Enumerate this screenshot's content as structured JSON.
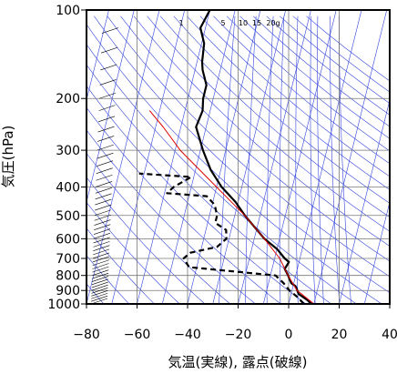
{
  "chart_data": {
    "type": "line",
    "subtype": "skew-t log-p sounding",
    "xlabel": "気温(実線), 露点(破線)",
    "ylabel": "気圧(hPa)",
    "xlim": [
      -80,
      40
    ],
    "ylim": [
      1000,
      100
    ],
    "y_scale": "log",
    "x_ticks": [
      "−80",
      "−60",
      "−40",
      "−20",
      "0",
      "20",
      "40"
    ],
    "x_tick_values": [
      -80,
      -60,
      -40,
      -20,
      0,
      20,
      40
    ],
    "y_ticks": [
      "100",
      "200",
      "300",
      "400",
      "500",
      "600",
      "700",
      "800",
      "900",
      "1000"
    ],
    "y_tick_values": [
      100,
      200,
      300,
      400,
      500,
      600,
      700,
      800,
      900,
      1000
    ],
    "mixing_ratio_labels": [
      "1",
      "5",
      "10",
      "15",
      "20g"
    ],
    "grid": true,
    "series": [
      {
        "style": "solid",
        "color": "#000000",
        "points": [
          {
            "p": 1000,
            "t": 9
          },
          {
            "p": 970,
            "t": 7
          },
          {
            "p": 925,
            "t": 3
          },
          {
            "p": 870,
            "t": 1
          },
          {
            "p": 850,
            "t": -1
          },
          {
            "p": 800,
            "t": -3
          },
          {
            "p": 760,
            "t": -5
          },
          {
            "p": 720,
            "t": -4
          },
          {
            "p": 700,
            "t": -6
          },
          {
            "p": 650,
            "t": -10
          },
          {
            "p": 600,
            "t": -16
          },
          {
            "p": 500,
            "t": -26
          },
          {
            "p": 450,
            "t": -31
          },
          {
            "p": 400,
            "t": -38
          },
          {
            "p": 350,
            "t": -44
          },
          {
            "p": 300,
            "t": -49
          },
          {
            "p": 250,
            "t": -54
          },
          {
            "p": 220,
            "t": -53
          },
          {
            "p": 200,
            "t": -54
          },
          {
            "p": 180,
            "t": -54
          },
          {
            "p": 160,
            "t": -57
          },
          {
            "p": 150,
            "t": -58
          },
          {
            "p": 130,
            "t": -59
          },
          {
            "p": 115,
            "t": -62
          },
          {
            "p": 100,
            "t": -60
          }
        ]
      },
      {
        "style": "dashed",
        "color": "#000000",
        "points": [
          {
            "p": 1000,
            "t": 6
          },
          {
            "p": 950,
            "t": 3
          },
          {
            "p": 900,
            "t": -1
          },
          {
            "p": 850,
            "t": -4
          },
          {
            "p": 800,
            "t": -8
          },
          {
            "p": 750,
            "t": -43
          },
          {
            "p": 700,
            "t": -46
          },
          {
            "p": 670,
            "t": -44
          },
          {
            "p": 640,
            "t": -34
          },
          {
            "p": 600,
            "t": -31
          },
          {
            "p": 560,
            "t": -32
          },
          {
            "p": 530,
            "t": -37
          },
          {
            "p": 500,
            "t": -37
          },
          {
            "p": 460,
            "t": -39
          },
          {
            "p": 430,
            "t": -43
          },
          {
            "p": 420,
            "t": -59
          },
          {
            "p": 400,
            "t": -57
          },
          {
            "p": 370,
            "t": -51
          },
          {
            "p": 360,
            "t": -72
          }
        ]
      },
      {
        "style": "solid",
        "color": "#e00000",
        "points": [
          {
            "p": 1000,
            "t": 10
          },
          {
            "p": 900,
            "t": 2
          },
          {
            "p": 800,
            "t": -3
          },
          {
            "p": 700,
            "t": -8
          },
          {
            "p": 600,
            "t": -16
          },
          {
            "p": 500,
            "t": -26
          },
          {
            "p": 400,
            "t": -40
          },
          {
            "p": 300,
            "t": -58
          },
          {
            "p": 250,
            "t": -67
          },
          {
            "p": 220,
            "t": -74
          }
        ]
      }
    ]
  }
}
